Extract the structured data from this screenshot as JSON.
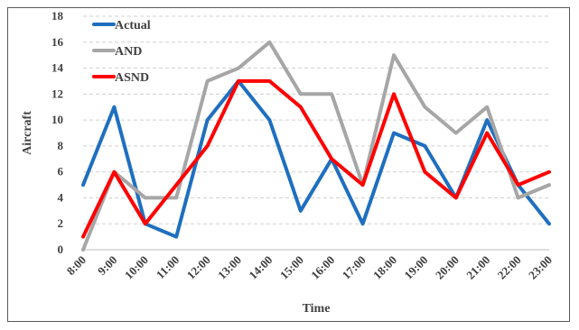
{
  "chart_data": {
    "type": "line",
    "xlabel": "Time",
    "ylabel": "Aircraft",
    "ylim": [
      0,
      18
    ],
    "y_ticks": [
      0,
      2,
      4,
      6,
      8,
      10,
      12,
      14,
      16,
      18
    ],
    "grid": true,
    "legend_position": "top-left",
    "categories": [
      "8:00",
      "9:00",
      "10:00",
      "11:00",
      "12:00",
      "13:00",
      "14:00",
      "15:00",
      "16:00",
      "17:00",
      "18:00",
      "19:00",
      "20:00",
      "21:00",
      "22:00",
      "23:00"
    ],
    "series": [
      {
        "name": "Actual",
        "color": "#1f6fbf",
        "values": [
          5,
          11,
          2,
          1,
          10,
          13,
          10,
          3,
          7,
          2,
          9,
          8,
          4,
          10,
          5,
          2
        ]
      },
      {
        "name": "AND",
        "color": "#a6a6a6",
        "values": [
          0,
          6,
          4,
          4,
          13,
          14,
          16,
          12,
          12,
          5,
          15,
          11,
          9,
          11,
          4,
          5
        ]
      },
      {
        "name": "ASND",
        "color": "#ff0000",
        "values": [
          1,
          6,
          2,
          5,
          8,
          13,
          13,
          11,
          7,
          5,
          12,
          6,
          4,
          9,
          5,
          6
        ]
      }
    ]
  }
}
